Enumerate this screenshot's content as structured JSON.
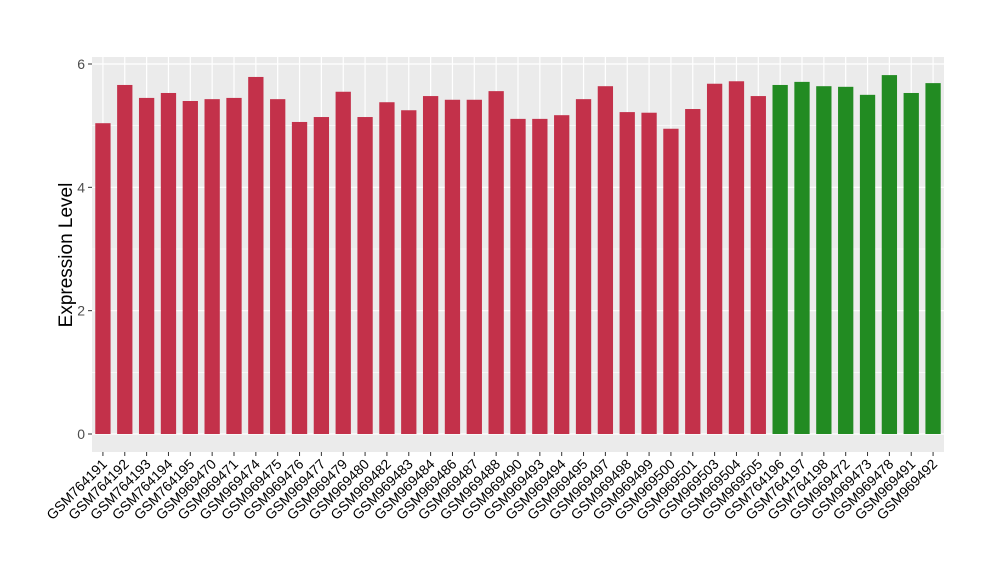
{
  "chart_data": {
    "type": "bar",
    "title": "",
    "xlabel": "",
    "ylabel": "Expression Level",
    "ylim": [
      -0.3,
      6.12
    ],
    "yticks": [
      0,
      2,
      4,
      6
    ],
    "grid": true,
    "categories": [
      "GSM764191",
      "GSM764192",
      "GSM764193",
      "GSM764194",
      "GSM764195",
      "GSM969470",
      "GSM969471",
      "GSM969474",
      "GSM969475",
      "GSM969476",
      "GSM969477",
      "GSM969479",
      "GSM969480",
      "GSM969482",
      "GSM969483",
      "GSM969484",
      "GSM969486",
      "GSM969487",
      "GSM969488",
      "GSM969490",
      "GSM969493",
      "GSM969494",
      "GSM969495",
      "GSM969497",
      "GSM969498",
      "GSM969499",
      "GSM969500",
      "GSM969501",
      "GSM969503",
      "GSM969504",
      "GSM969505",
      "GSM764196",
      "GSM764197",
      "GSM764198",
      "GSM969472",
      "GSM969473",
      "GSM969478",
      "GSM969491",
      "GSM969492"
    ],
    "values": [
      5.04,
      5.66,
      5.45,
      5.53,
      5.4,
      5.43,
      5.45,
      5.79,
      5.43,
      5.06,
      5.14,
      5.55,
      5.14,
      5.38,
      5.25,
      5.48,
      5.42,
      5.42,
      5.56,
      5.11,
      5.11,
      5.17,
      5.43,
      5.64,
      5.22,
      5.21,
      4.95,
      5.27,
      5.68,
      5.72,
      5.48,
      5.66,
      5.71,
      5.64,
      5.63,
      5.5,
      5.82,
      5.53,
      5.69
    ],
    "groups": [
      "red",
      "red",
      "red",
      "red",
      "red",
      "red",
      "red",
      "red",
      "red",
      "red",
      "red",
      "red",
      "red",
      "red",
      "red",
      "red",
      "red",
      "red",
      "red",
      "red",
      "red",
      "red",
      "red",
      "red",
      "red",
      "red",
      "red",
      "red",
      "red",
      "red",
      "red",
      "green",
      "green",
      "green",
      "green",
      "green",
      "green",
      "green",
      "green"
    ],
    "colors": {
      "red": "#c3314a",
      "green": "#228b22",
      "panel": "#ebebeb",
      "grid": "#ffffff"
    }
  }
}
